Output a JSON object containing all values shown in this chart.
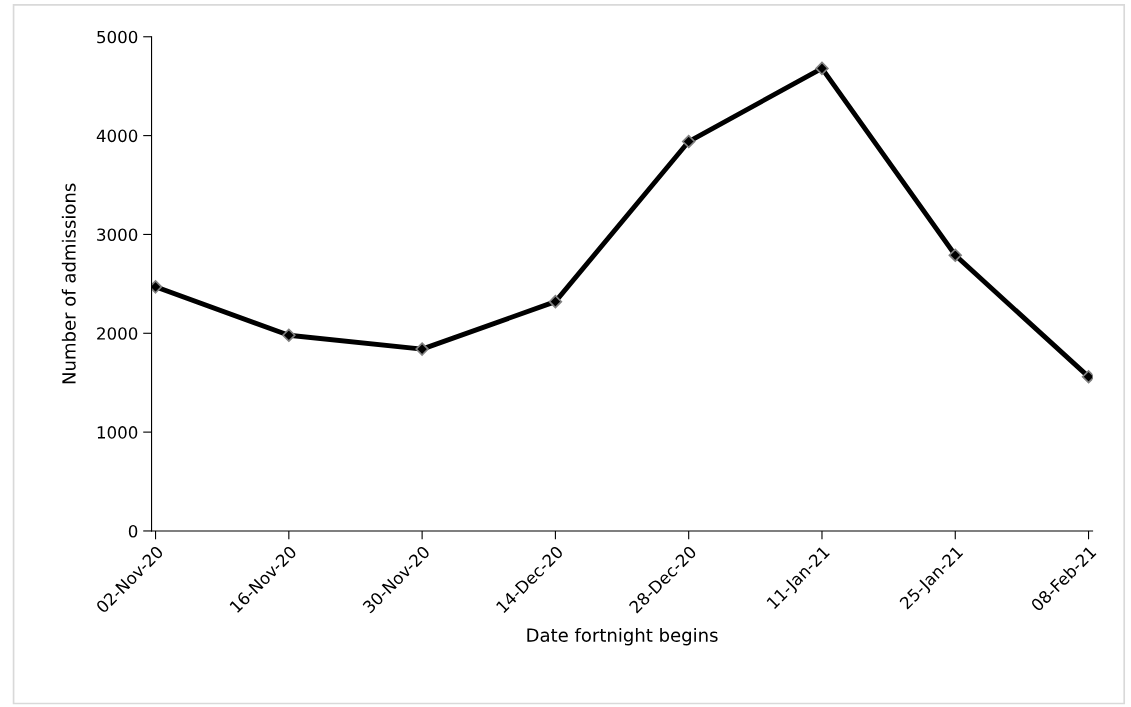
{
  "chart_data": {
    "type": "line",
    "xlabel": "Date fortnight begins",
    "ylabel": "Number of admissions",
    "categories": [
      "02-Nov-20",
      "16-Nov-20",
      "30-Nov-20",
      "14-Dec-20",
      "28-Dec-20",
      "11-Jan-21",
      "25-Jan-21",
      "08-Feb-21"
    ],
    "series": [
      {
        "color": "#000000",
        "values": [
          2470,
          1980,
          1840,
          2320,
          3940,
          4680,
          2790,
          1560
        ]
      }
    ],
    "ylim": [
      0,
      5000
    ],
    "yticks": [
      0,
      1000,
      2000,
      3000,
      4000,
      5000
    ],
    "marker": "diamond",
    "line_style": "solid"
  }
}
